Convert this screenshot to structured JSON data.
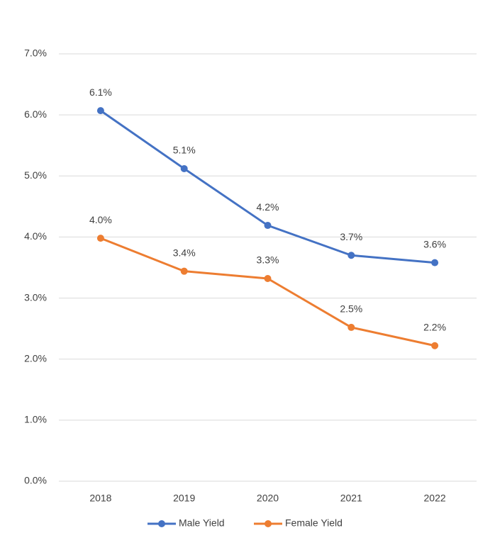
{
  "chart_data": {
    "type": "line",
    "categories": [
      "2018",
      "2019",
      "2020",
      "2021",
      "2022"
    ],
    "series": [
      {
        "name": "Male Yield",
        "color": "#4472c4",
        "values": [
          6.07,
          5.12,
          4.19,
          3.7,
          3.58
        ],
        "value_labels": [
          "6.1%",
          "5.1%",
          "4.2%",
          "3.7%",
          "3.6%"
        ]
      },
      {
        "name": "Female Yield",
        "color": "#ed7d31",
        "values": [
          3.98,
          3.44,
          3.32,
          2.52,
          2.22
        ],
        "value_labels": [
          "4.0%",
          "3.4%",
          "3.3%",
          "2.5%",
          "2.2%"
        ]
      }
    ],
    "ylim": [
      0,
      7
    ],
    "yticks": [
      {
        "value": 0,
        "label": "0.0%"
      },
      {
        "value": 1,
        "label": "1.0%"
      },
      {
        "value": 2,
        "label": "2.0%"
      },
      {
        "value": 3,
        "label": "3.0%"
      },
      {
        "value": 4,
        "label": "4.0%"
      },
      {
        "value": 5,
        "label": "5.0%"
      },
      {
        "value": 6,
        "label": "6.0%"
      },
      {
        "value": 7,
        "label": "7.0%"
      }
    ],
    "grid": true,
    "legend": "bottom"
  }
}
